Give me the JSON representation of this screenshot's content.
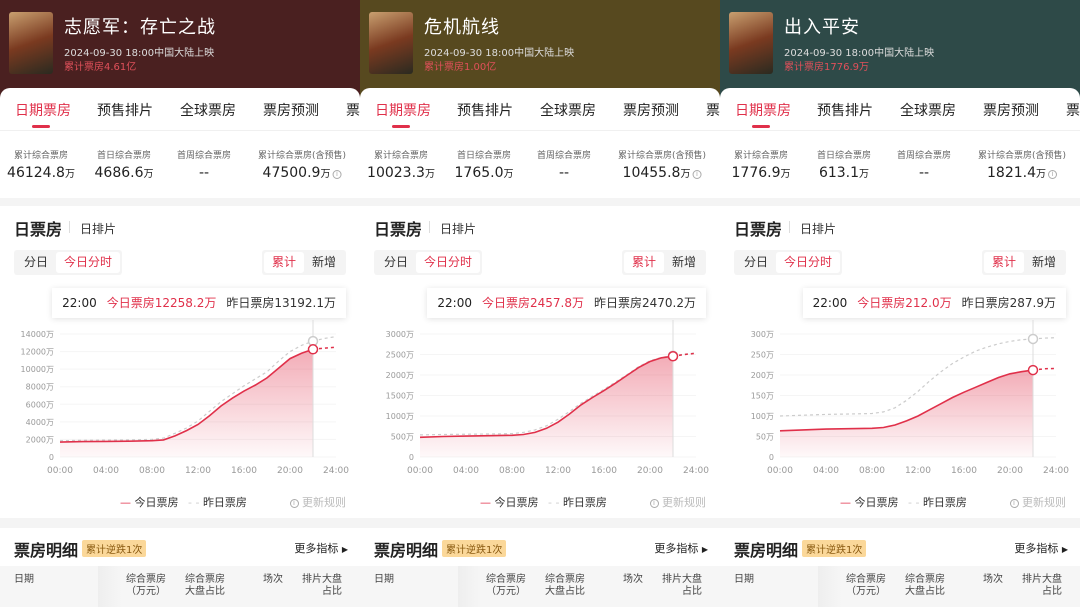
{
  "common": {
    "tabs": [
      "日期票房",
      "预售排片",
      "全球票房",
      "票房预测",
      "票"
    ],
    "stat_labels": [
      "累计综合票房",
      "首日综合票房",
      "首周综合票房",
      "累计综合票房(含预售)"
    ],
    "unit": "万",
    "section_title": "日票房",
    "section_sub": "日排片",
    "seg_left": [
      "分日",
      "今日分时"
    ],
    "seg_right": [
      "累计",
      "新增"
    ],
    "tip_time": "22:00",
    "tip_today_label": "今日票房",
    "tip_yest_label": "昨日票房",
    "legend_today": "今日票房",
    "legend_yest": "昨日票房",
    "update_rule": "更新规则",
    "detail_title": "票房明细",
    "detail_badge": "累计逆跌1次",
    "more": "更多指标",
    "table_headers": [
      "日期",
      "综合票房",
      "（万元）",
      "综合票房",
      "大盘占比",
      "场次",
      "排片大盘",
      "占比"
    ],
    "accent": "#e0304a"
  },
  "panels": [
    {
      "title": "志愿军：存亡之战",
      "release": "2024-09-30 18:00中国大陆上映",
      "cumulative": "累计票房4.61亿",
      "header_color": "#4a2020",
      "stats": [
        "46124.8",
        "4686.6",
        "--",
        "47500.9"
      ],
      "tip_today": "12258.2万",
      "tip_yest": "13192.1万",
      "chart_data": {
        "type": "line",
        "x_ticks": [
          "00:00",
          "04:00",
          "08:00",
          "12:00",
          "16:00",
          "20:00",
          "24:00"
        ],
        "y_ticks": [
          "0",
          "2000万",
          "4000万",
          "6000万",
          "8000万",
          "10000万",
          "12000万",
          "14000万"
        ],
        "ylim": [
          0,
          14000
        ],
        "x": [
          0,
          2,
          4,
          6,
          8,
          9,
          10,
          11,
          12,
          13,
          14,
          15,
          16,
          17,
          18,
          19,
          20,
          21,
          22
        ],
        "series": [
          {
            "name": "今日票房",
            "values": [
              1700,
              1750,
              1780,
              1800,
              1850,
              1950,
              2400,
              3000,
              3700,
              4700,
              5800,
              6700,
              7500,
              8200,
              9000,
              10100,
              11200,
              11800,
              12258.2
            ],
            "forecast": [
              12400,
              12500
            ]
          },
          {
            "name": "昨日票房",
            "values": [
              1850,
              1900,
              1920,
              1950,
              2000,
              2150,
              2700,
              3300,
              4100,
              5200,
              6300,
              7200,
              8100,
              8900,
              9700,
              10900,
              12000,
              12700,
              13192.1
            ],
            "forecast": [
              13500,
              13700
            ]
          }
        ]
      }
    },
    {
      "title": "危机航线",
      "release": "2024-09-30 18:00中国大陆上映",
      "cumulative": "累计票房1.00亿",
      "header_color": "#57491f",
      "stats": [
        "10023.3",
        "1765.0",
        "--",
        "10455.8"
      ],
      "tip_today": "2457.8万",
      "tip_yest": "2470.2万",
      "chart_data": {
        "type": "line",
        "x_ticks": [
          "00:00",
          "04:00",
          "08:00",
          "12:00",
          "16:00",
          "20:00",
          "24:00"
        ],
        "y_ticks": [
          "0",
          "500万",
          "1000万",
          "1500万",
          "2000万",
          "2500万",
          "3000万"
        ],
        "ylim": [
          0,
          3000
        ],
        "x": [
          0,
          2,
          4,
          6,
          8,
          9,
          10,
          11,
          12,
          13,
          14,
          15,
          16,
          17,
          18,
          19,
          20,
          21,
          22
        ],
        "series": [
          {
            "name": "今日票房",
            "values": [
              480,
              500,
              510,
              520,
              530,
              550,
              600,
              700,
              850,
              1050,
              1270,
              1450,
              1620,
              1800,
              1990,
              2180,
              2330,
              2420,
              2457.8
            ],
            "forecast": [
              2500,
              2530
            ]
          },
          {
            "name": "昨日票房",
            "values": [
              540,
              550,
              555,
              560,
              570,
              600,
              660,
              760,
              920,
              1110,
              1310,
              1480,
              1650,
              1830,
              2010,
              2200,
              2350,
              2430,
              2470.2
            ],
            "forecast": [
              2510,
              2540
            ]
          }
        ]
      }
    },
    {
      "title": "出入平安",
      "release": "2024-09-30 18:00中国大陆上映",
      "cumulative": "累计票房1776.9万",
      "header_color": "#2e4a48",
      "stats": [
        "1776.9",
        "613.1",
        "--",
        "1821.4"
      ],
      "tip_today": "212.0万",
      "tip_yest": "287.9万",
      "chart_data": {
        "type": "line",
        "x_ticks": [
          "00:00",
          "04:00",
          "08:00",
          "12:00",
          "16:00",
          "20:00",
          "24:00"
        ],
        "y_ticks": [
          "0",
          "50万",
          "100万",
          "150万",
          "200万",
          "250万",
          "300万"
        ],
        "ylim": [
          0,
          300
        ],
        "x": [
          0,
          2,
          4,
          6,
          8,
          9,
          10,
          11,
          12,
          13,
          14,
          15,
          16,
          17,
          18,
          19,
          20,
          21,
          22
        ],
        "series": [
          {
            "name": "今日票房",
            "values": [
              64,
              66,
              68,
              69,
              70,
              72,
              78,
              88,
              100,
              115,
              130,
              145,
              158,
              170,
              182,
              194,
              203,
              208,
              212
            ],
            "forecast": [
              215,
              216
            ]
          },
          {
            "name": "昨日票房",
            "values": [
              100,
              102,
              104,
              105,
              106,
              110,
              120,
              138,
              160,
              185,
              208,
              228,
              244,
              258,
              268,
              276,
              282,
              286,
              287.9
            ],
            "forecast": [
              290,
              291
            ]
          }
        ]
      }
    }
  ]
}
